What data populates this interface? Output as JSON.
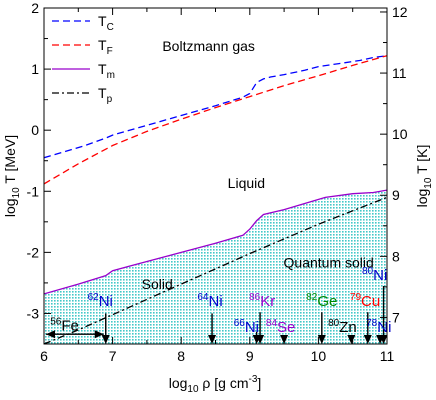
{
  "chart_data": {
    "type": "line",
    "xlabel_prefix": "log",
    "xlabel_sub": "10",
    "xlabel_main": " ρ [g cm",
    "xlabel_sup": "-3",
    "xlabel_end": "]",
    "ylabel_prefix": "log",
    "ylabel_sub": "10",
    "ylabel_main": " T [MeV]",
    "y2label_prefix": "log",
    "y2label_sub": "10",
    "y2label_main": " T [K]",
    "xlim": [
      6,
      11
    ],
    "ylim": [
      -3.5,
      2
    ],
    "y2lim": [
      6.5651,
      12.0651
    ],
    "x_ticks": [
      6,
      7,
      8,
      9,
      10,
      11
    ],
    "y_ticks": [
      -3,
      -2,
      -1,
      0,
      1,
      2
    ],
    "y2_ticks": [
      7,
      8,
      9,
      10,
      11,
      12
    ],
    "legend_position": "top-left",
    "series": [
      {
        "name": "T",
        "sub": "C",
        "color": "#0000ff",
        "style": "dashed",
        "points": [
          [
            6.0,
            -0.45
          ],
          [
            6.3,
            -0.35
          ],
          [
            6.6,
            -0.25
          ],
          [
            6.9,
            -0.13
          ],
          [
            7.0,
            -0.08
          ],
          [
            7.5,
            0.08
          ],
          [
            8.0,
            0.24
          ],
          [
            8.5,
            0.4
          ],
          [
            8.9,
            0.54
          ],
          [
            9.0,
            0.6
          ],
          [
            9.1,
            0.78
          ],
          [
            9.2,
            0.84
          ],
          [
            9.3,
            0.87
          ],
          [
            9.5,
            0.91
          ],
          [
            9.8,
            0.98
          ],
          [
            10.0,
            1.04
          ],
          [
            10.3,
            1.09
          ],
          [
            10.6,
            1.14
          ],
          [
            10.8,
            1.19
          ],
          [
            11.0,
            1.22
          ]
        ]
      },
      {
        "name": "T",
        "sub": "F",
        "color": "#ff0000",
        "style": "dashed",
        "points": [
          [
            6.0,
            -0.88
          ],
          [
            6.5,
            -0.55
          ],
          [
            7.0,
            -0.25
          ],
          [
            7.5,
            -0.02
          ],
          [
            8.0,
            0.18
          ],
          [
            8.5,
            0.37
          ],
          [
            9.0,
            0.55
          ],
          [
            9.5,
            0.73
          ],
          [
            10.0,
            0.89
          ],
          [
            10.5,
            1.06
          ],
          [
            11.0,
            1.22
          ]
        ]
      },
      {
        "name": "T",
        "sub": "m",
        "color": "#9900cc",
        "style": "solid",
        "points": [
          [
            6.0,
            -2.68
          ],
          [
            6.5,
            -2.52
          ],
          [
            6.9,
            -2.38
          ],
          [
            7.0,
            -2.3
          ],
          [
            7.5,
            -2.15
          ],
          [
            8.0,
            -2.0
          ],
          [
            8.5,
            -1.85
          ],
          [
            8.9,
            -1.72
          ],
          [
            9.0,
            -1.62
          ],
          [
            9.1,
            -1.48
          ],
          [
            9.2,
            -1.38
          ],
          [
            9.5,
            -1.3
          ],
          [
            9.8,
            -1.2
          ],
          [
            10.1,
            -1.1
          ],
          [
            10.5,
            -1.04
          ],
          [
            10.8,
            -1.02
          ],
          [
            11.0,
            -0.98
          ]
        ]
      },
      {
        "name": "T",
        "sub": "p",
        "color": "#000000",
        "style": "dashdot",
        "points": [
          [
            6.0,
            -3.5
          ],
          [
            6.5,
            -3.27
          ],
          [
            7.0,
            -3.02
          ],
          [
            7.5,
            -2.77
          ],
          [
            8.0,
            -2.52
          ],
          [
            8.5,
            -2.27
          ],
          [
            9.0,
            -2.02
          ],
          [
            9.5,
            -1.78
          ],
          [
            10.0,
            -1.54
          ],
          [
            10.5,
            -1.32
          ],
          [
            11.0,
            -1.1
          ]
        ]
      }
    ],
    "regions": [
      {
        "label": "Boltzmann gas",
        "x": 8.4,
        "y": 1.3
      },
      {
        "label": "Liquid",
        "x": 8.95,
        "y": -0.95
      },
      {
        "label": "Solid",
        "x": 7.65,
        "y": -2.6
      },
      {
        "label": "Quantum solid",
        "x": 10.15,
        "y": -2.25
      }
    ],
    "isotopes": [
      {
        "mass": "56",
        "symbol": "Fe",
        "color": "#000000",
        "x": 6.3,
        "y": -3.28,
        "arrow_x": null,
        "arrow_y": null
      },
      {
        "mass": "62",
        "symbol": "Ni",
        "color": "#0000cc",
        "x": 6.82,
        "y": -2.88,
        "arrow_x": 6.9,
        "arrow_y": -3.0
      },
      {
        "mass": "64",
        "symbol": "Ni",
        "color": "#0000cc",
        "x": 8.42,
        "y": -2.88,
        "arrow_x": 8.45,
        "arrow_y": -3.0
      },
      {
        "mass": "86",
        "symbol": "Kr",
        "color": "#9900cc",
        "x": 9.18,
        "y": -2.88,
        "arrow_x": 9.15,
        "arrow_y": -2.98
      },
      {
        "mass": "82",
        "symbol": "Ge",
        "color": "#008800",
        "x": 10.05,
        "y": -2.88,
        "arrow_x": 10.05,
        "arrow_y": -2.98
      },
      {
        "mass": "80",
        "symbol": "Ni",
        "color": "#0000cc",
        "x": 10.82,
        "y": -2.45,
        "arrow_x": 10.95,
        "arrow_y": -2.55
      },
      {
        "mass": "79",
        "symbol": "Cu",
        "color": "#ff0000",
        "x": 10.68,
        "y": -2.88,
        "arrow_x": 10.72,
        "arrow_y": -2.98
      },
      {
        "mass": "66",
        "symbol": "Ni",
        "color": "#0000cc",
        "x": 8.95,
        "y": -3.3,
        "arrow_x": 9.1,
        "arrow_y": -3.3
      },
      {
        "mass": "84",
        "symbol": "Se",
        "color": "#9900cc",
        "x": 9.45,
        "y": -3.3,
        "arrow_x": 9.5,
        "arrow_y": -3.38
      },
      {
        "mass": "80",
        "symbol": "Zn",
        "color": "#000000",
        "x": 10.35,
        "y": -3.3,
        "arrow_x": 10.48,
        "arrow_y": -3.38
      },
      {
        "mass": "78",
        "symbol": "Ni",
        "color": "#0000cc",
        "x": 10.88,
        "y": -3.3,
        "arrow_x": 10.9,
        "arrow_y": -3.38
      }
    ]
  }
}
